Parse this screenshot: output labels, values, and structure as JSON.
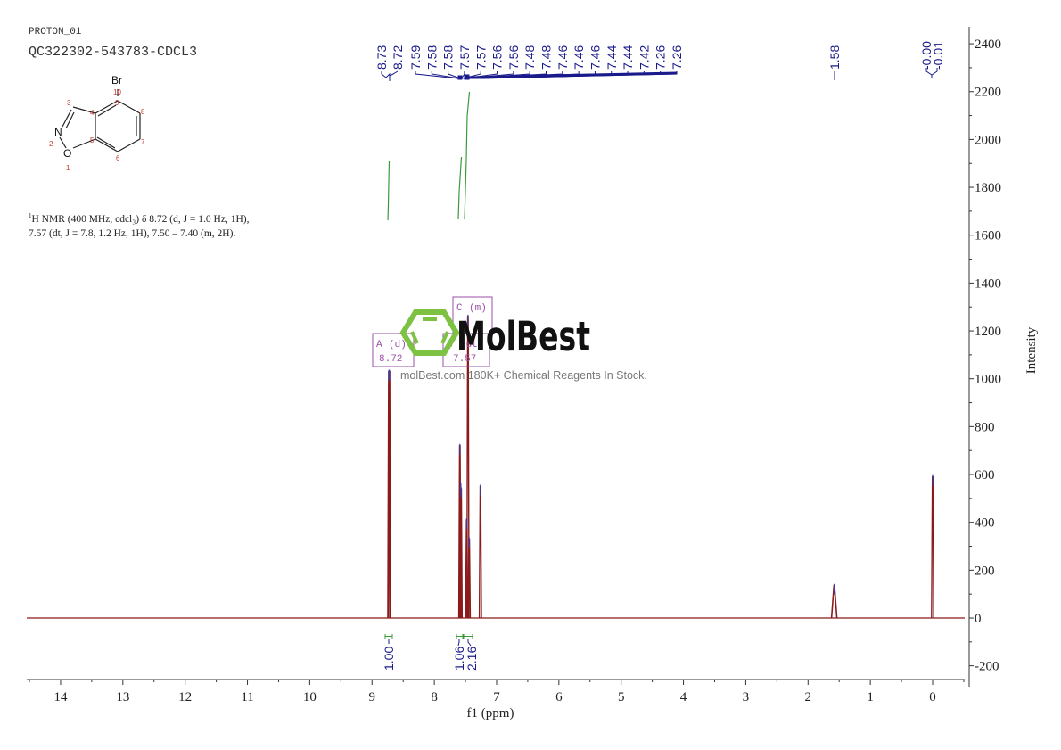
{
  "header": {
    "sample_id": "PROTON_01",
    "compound_id": "QC322302-543783-CDCL3"
  },
  "structure": {
    "name": "4-bromo-1,2-benzisoxazole",
    "substituent": "Br",
    "atom_labels": [
      {
        "n": "1",
        "atom": "O"
      },
      {
        "n": "2",
        "atom": "N"
      },
      {
        "n": "3"
      },
      {
        "n": "4"
      },
      {
        "n": "5"
      },
      {
        "n": "6"
      },
      {
        "n": "7"
      },
      {
        "n": "8"
      },
      {
        "n": "9"
      },
      {
        "n": "10"
      }
    ]
  },
  "nmr_description": {
    "nucleus_sup": "1",
    "line1": "H NMR (400 MHz, cdcl₃) δ 8.72 (d, J = 1.0 Hz, 1H),",
    "line2": "7.57 (dt, J = 7.8, 1.2 Hz, 1H), 7.50 – 7.40 (m, 2H)."
  },
  "watermark": {
    "brand": "MolBest",
    "tagline": "molBest.com 180K+ Chemical Reagents In Stock.",
    "icon_color": "#7dc242"
  },
  "multiplets": [
    {
      "label": "A",
      "mult": "(d)",
      "shift": "8.72"
    },
    {
      "label": "B",
      "mult": "(dt)",
      "shift": "7.57"
    },
    {
      "label": "C",
      "mult": "(m)",
      "shift": ""
    }
  ],
  "colors": {
    "spectrum": "#8b1a1a",
    "peak_labels": "#1a1a8c",
    "integral": "#3a9a3a",
    "multiplet_box": "#9b4fa8",
    "axis": "#333333"
  },
  "chart_data": {
    "type": "line",
    "title": "QC322302-543783-CDCL3",
    "xlabel": "f1 (ppm)",
    "ylabel": "Intensity",
    "xlim": [
      14.6,
      -0.5
    ],
    "ylim": [
      -230,
      2480
    ],
    "x_ticks": [
      "14",
      "13",
      "12",
      "11",
      "10",
      "9",
      "8",
      "7",
      "6",
      "5",
      "4",
      "3",
      "2",
      "1",
      "0"
    ],
    "y_ticks": [
      "2400",
      "2200",
      "2000",
      "1800",
      "1600",
      "1400",
      "1200",
      "1000",
      "800",
      "600",
      "400",
      "200",
      "0",
      "-200"
    ],
    "peak_labels_group1": [
      "8.73",
      "8.72"
    ],
    "peak_labels_group2": [
      "7.59",
      "7.58",
      "7.58",
      "7.57",
      "7.57",
      "7.56",
      "7.56",
      "7.48",
      "7.48",
      "7.46",
      "7.46",
      "7.46",
      "7.44",
      "7.44",
      "7.42",
      "7.26",
      "7.26"
    ],
    "peak_labels_single": [
      "1.58"
    ],
    "peak_labels_group3": [
      "-0.00",
      "-0.01"
    ],
    "peaks": [
      {
        "ppm": 8.73,
        "intensity": 1030
      },
      {
        "ppm": 8.72,
        "intensity": 1030
      },
      {
        "ppm": 7.59,
        "intensity": 720
      },
      {
        "ppm": 7.58,
        "intensity": 560
      },
      {
        "ppm": 7.57,
        "intensity": 540
      },
      {
        "ppm": 7.48,
        "intensity": 410
      },
      {
        "ppm": 7.46,
        "intensity": 1260
      },
      {
        "ppm": 7.44,
        "intensity": 330
      },
      {
        "ppm": 7.26,
        "intensity": 550
      },
      {
        "ppm": 1.58,
        "intensity": 135
      },
      {
        "ppm": 0.0,
        "intensity": 590
      }
    ],
    "integrals": [
      {
        "ppm": 8.72,
        "value": "1.00"
      },
      {
        "ppm": 7.57,
        "value": "1.06"
      },
      {
        "ppm": 7.46,
        "value": "2.16"
      }
    ]
  }
}
